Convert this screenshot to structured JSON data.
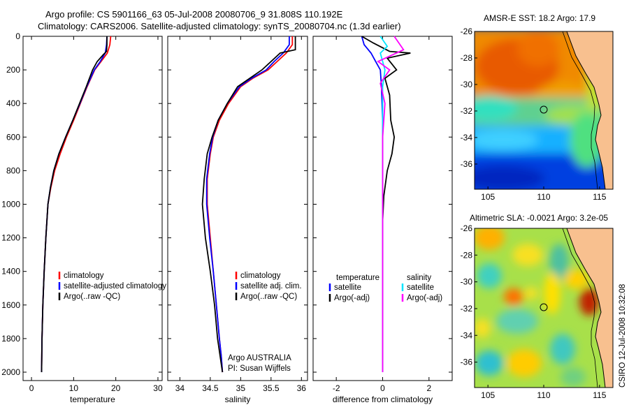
{
  "figure": {
    "title_line1": "Argo profile: CS 5901166_63 05-Jul-2008 20080706_9 31.808S 110.192E",
    "title_line2": "Climatology: CARS2006. Satellite-adjusted climatology: synTS_20080704.nc (1.3d earlier)",
    "side_caption": "CSIRO 12-Jul-2008 10:32:08",
    "owner_text": "Argo AUSTRALIA",
    "pi_text": "PI: Susan Wijffels"
  },
  "colors": {
    "climatology": "#ff0000",
    "satellite": "#0000ff",
    "argo": "#000000",
    "sal_satellite": "#00e5ff",
    "sal_argo": "#ff00ff",
    "land": "#f8c08f",
    "coast": "#000000"
  },
  "chart_data": [
    {
      "type": "line",
      "id": "temperature",
      "xlabel": "temperature",
      "xlim": [
        -2,
        31
      ],
      "ylim": [
        2050,
        0
      ],
      "y_reversed": true,
      "xticks": [
        0,
        10,
        20,
        30
      ],
      "yticks": [
        0,
        200,
        400,
        600,
        800,
        1000,
        1200,
        1400,
        1600,
        1800,
        2000
      ],
      "legend": [
        "climatology",
        "satellite-adjusted climatology",
        "Argo(..raw -QC)"
      ],
      "series": [
        {
          "name": "climatology",
          "color": "#ff0000",
          "x": [
            18.8,
            18.6,
            18.0,
            16.5,
            15.0,
            13.2,
            11.6,
            10.0,
            8.3,
            6.8,
            5.5,
            4.6,
            3.9,
            3.4,
            3.0,
            2.7,
            2.5,
            2.4
          ],
          "y": [
            0,
            50,
            100,
            150,
            200,
            300,
            400,
            500,
            600,
            700,
            800,
            900,
            1000,
            1200,
            1400,
            1600,
            1800,
            2000
          ]
        },
        {
          "name": "satellite-adjusted climatology",
          "color": "#0000ff",
          "x": [
            17.9,
            17.8,
            17.5,
            16.3,
            14.9,
            13.1,
            11.5,
            9.8,
            8.1,
            6.5,
            5.3,
            4.5,
            3.9,
            3.4,
            3.0,
            2.7,
            2.5,
            2.4
          ],
          "y": [
            0,
            50,
            100,
            150,
            200,
            300,
            400,
            500,
            600,
            700,
            800,
            900,
            1000,
            1200,
            1400,
            1600,
            1800,
            2000
          ]
        },
        {
          "name": "Argo(..raw -QC)",
          "color": "#000000",
          "x": [
            17.9,
            17.9,
            17.8,
            17.0,
            15.6,
            14.5,
            13.0,
            11.4,
            9.8,
            8.1,
            6.5,
            5.3,
            4.5,
            3.9,
            3.4,
            3.0,
            2.7,
            2.5,
            2.4
          ],
          "y": [
            0,
            50,
            90,
            110,
            150,
            200,
            300,
            400,
            500,
            600,
            700,
            800,
            900,
            1000,
            1200,
            1400,
            1600,
            1800,
            2000
          ]
        }
      ]
    },
    {
      "type": "line",
      "id": "salinity",
      "xlabel": "salinity",
      "xlim": [
        33.8,
        36.1
      ],
      "ylim": [
        2050,
        0
      ],
      "y_reversed": true,
      "xticks": [
        34,
        34.5,
        35,
        35.5,
        36
      ],
      "xticklabels": [
        "34",
        "34.5",
        "35",
        "35.5",
        "36"
      ],
      "legend": [
        "climatology",
        "satellite adj. clim.",
        "Argo(..raw -QC)"
      ],
      "series": [
        {
          "name": "climatology",
          "color": "#ff0000",
          "x": [
            35.85,
            35.85,
            35.75,
            35.6,
            35.45,
            35.2,
            35.0,
            34.8,
            34.65,
            34.55,
            34.5,
            34.45,
            34.45,
            34.5,
            34.55,
            34.6,
            34.65,
            34.68,
            34.7
          ],
          "y": [
            0,
            50,
            100,
            150,
            200,
            250,
            300,
            400,
            500,
            600,
            700,
            850,
            1000,
            1200,
            1400,
            1600,
            1800,
            1900,
            2000
          ]
        },
        {
          "name": "satellite adj. clim.",
          "color": "#0000ff",
          "x": [
            35.8,
            35.8,
            35.7,
            35.55,
            35.42,
            35.18,
            34.98,
            34.78,
            34.63,
            34.54,
            34.49,
            34.44,
            34.44,
            34.49,
            34.55,
            34.6,
            34.65,
            34.68,
            34.7
          ],
          "y": [
            0,
            50,
            100,
            150,
            200,
            250,
            300,
            400,
            500,
            600,
            700,
            850,
            1000,
            1200,
            1400,
            1600,
            1800,
            1900,
            2000
          ]
        },
        {
          "name": "Argo(..raw -QC)",
          "color": "#000000",
          "x": [
            35.9,
            35.9,
            35.65,
            35.5,
            35.35,
            35.15,
            34.95,
            34.78,
            34.63,
            34.53,
            34.45,
            34.4,
            34.37,
            34.42,
            34.5,
            34.57,
            34.62,
            34.66,
            34.7
          ],
          "y": [
            0,
            80,
            100,
            150,
            200,
            250,
            300,
            400,
            500,
            600,
            700,
            850,
            1000,
            1200,
            1400,
            1600,
            1800,
            1900,
            2000
          ]
        }
      ]
    },
    {
      "type": "line",
      "id": "difference",
      "xlabel": "difference from climatology",
      "xlim": [
        -3,
        3
      ],
      "ylim": [
        2050,
        0
      ],
      "y_reversed": true,
      "xticks": [
        -2,
        0,
        2
      ],
      "legend_left_title": "temperature",
      "legend_left": [
        "satellite",
        "Argo(-adj)"
      ],
      "legend_right_title": "salinity",
      "legend_right": [
        "satellite",
        "Argo(-adj)"
      ],
      "series": [
        {
          "name": "temperature satellite",
          "color": "#0000ff",
          "x": [
            -0.9,
            -0.8,
            -0.5,
            -0.3,
            -0.1,
            -0.05,
            0,
            0,
            0,
            0
          ],
          "y": [
            0,
            50,
            100,
            150,
            200,
            300,
            500,
            800,
            1200,
            2000
          ]
        },
        {
          "name": "temperature Argo(-adj)",
          "color": "#000000",
          "x": [
            -0.9,
            -0.4,
            0.3,
            1.2,
            0.2,
            0.6,
            0.1,
            0.3,
            0.35,
            0.5,
            0.4,
            0.2,
            0.05,
            0,
            0,
            0
          ],
          "y": [
            0,
            40,
            90,
            100,
            130,
            200,
            250,
            350,
            500,
            600,
            700,
            800,
            950,
            1100,
            1500,
            2000
          ]
        },
        {
          "name": "salinity satellite",
          "color": "#00e5ff",
          "x": [
            -0.1,
            0.2,
            -0.1,
            0.1,
            0,
            0,
            0,
            0
          ],
          "y": [
            0,
            60,
            100,
            200,
            300,
            600,
            1200,
            2000
          ]
        },
        {
          "name": "salinity Argo(-adj)",
          "color": "#ff00ff",
          "x": [
            0.5,
            0.9,
            -0.2,
            0.3,
            -0.1,
            0.1,
            0,
            0,
            0
          ],
          "y": [
            0,
            80,
            150,
            200,
            280,
            400,
            600,
            1200,
            2000
          ]
        }
      ]
    },
    {
      "type": "heatmap",
      "id": "sst_map",
      "title": "AMSR-E SST: 18.2  Argo: 17.9",
      "xlim": [
        103.8,
        116.2
      ],
      "ylim": [
        -37.9,
        -26
      ],
      "xticks": [
        105,
        110,
        115
      ],
      "yticks": [
        -26,
        -28,
        -30,
        -32,
        -34,
        -36
      ],
      "argo_position": {
        "lon": 110.192,
        "lat": -31.808
      }
    },
    {
      "type": "heatmap",
      "id": "sla_map",
      "title": "Altimetric SLA: -0.0021  Argo: 3.2e-05",
      "xlim": [
        103.8,
        116.2
      ],
      "ylim": [
        -37.9,
        -26
      ],
      "xticks": [
        105,
        110,
        115
      ],
      "yticks": [
        -26,
        -28,
        -30,
        -32,
        -34,
        -36
      ],
      "argo_position": {
        "lon": 110.192,
        "lat": -31.808
      }
    }
  ]
}
